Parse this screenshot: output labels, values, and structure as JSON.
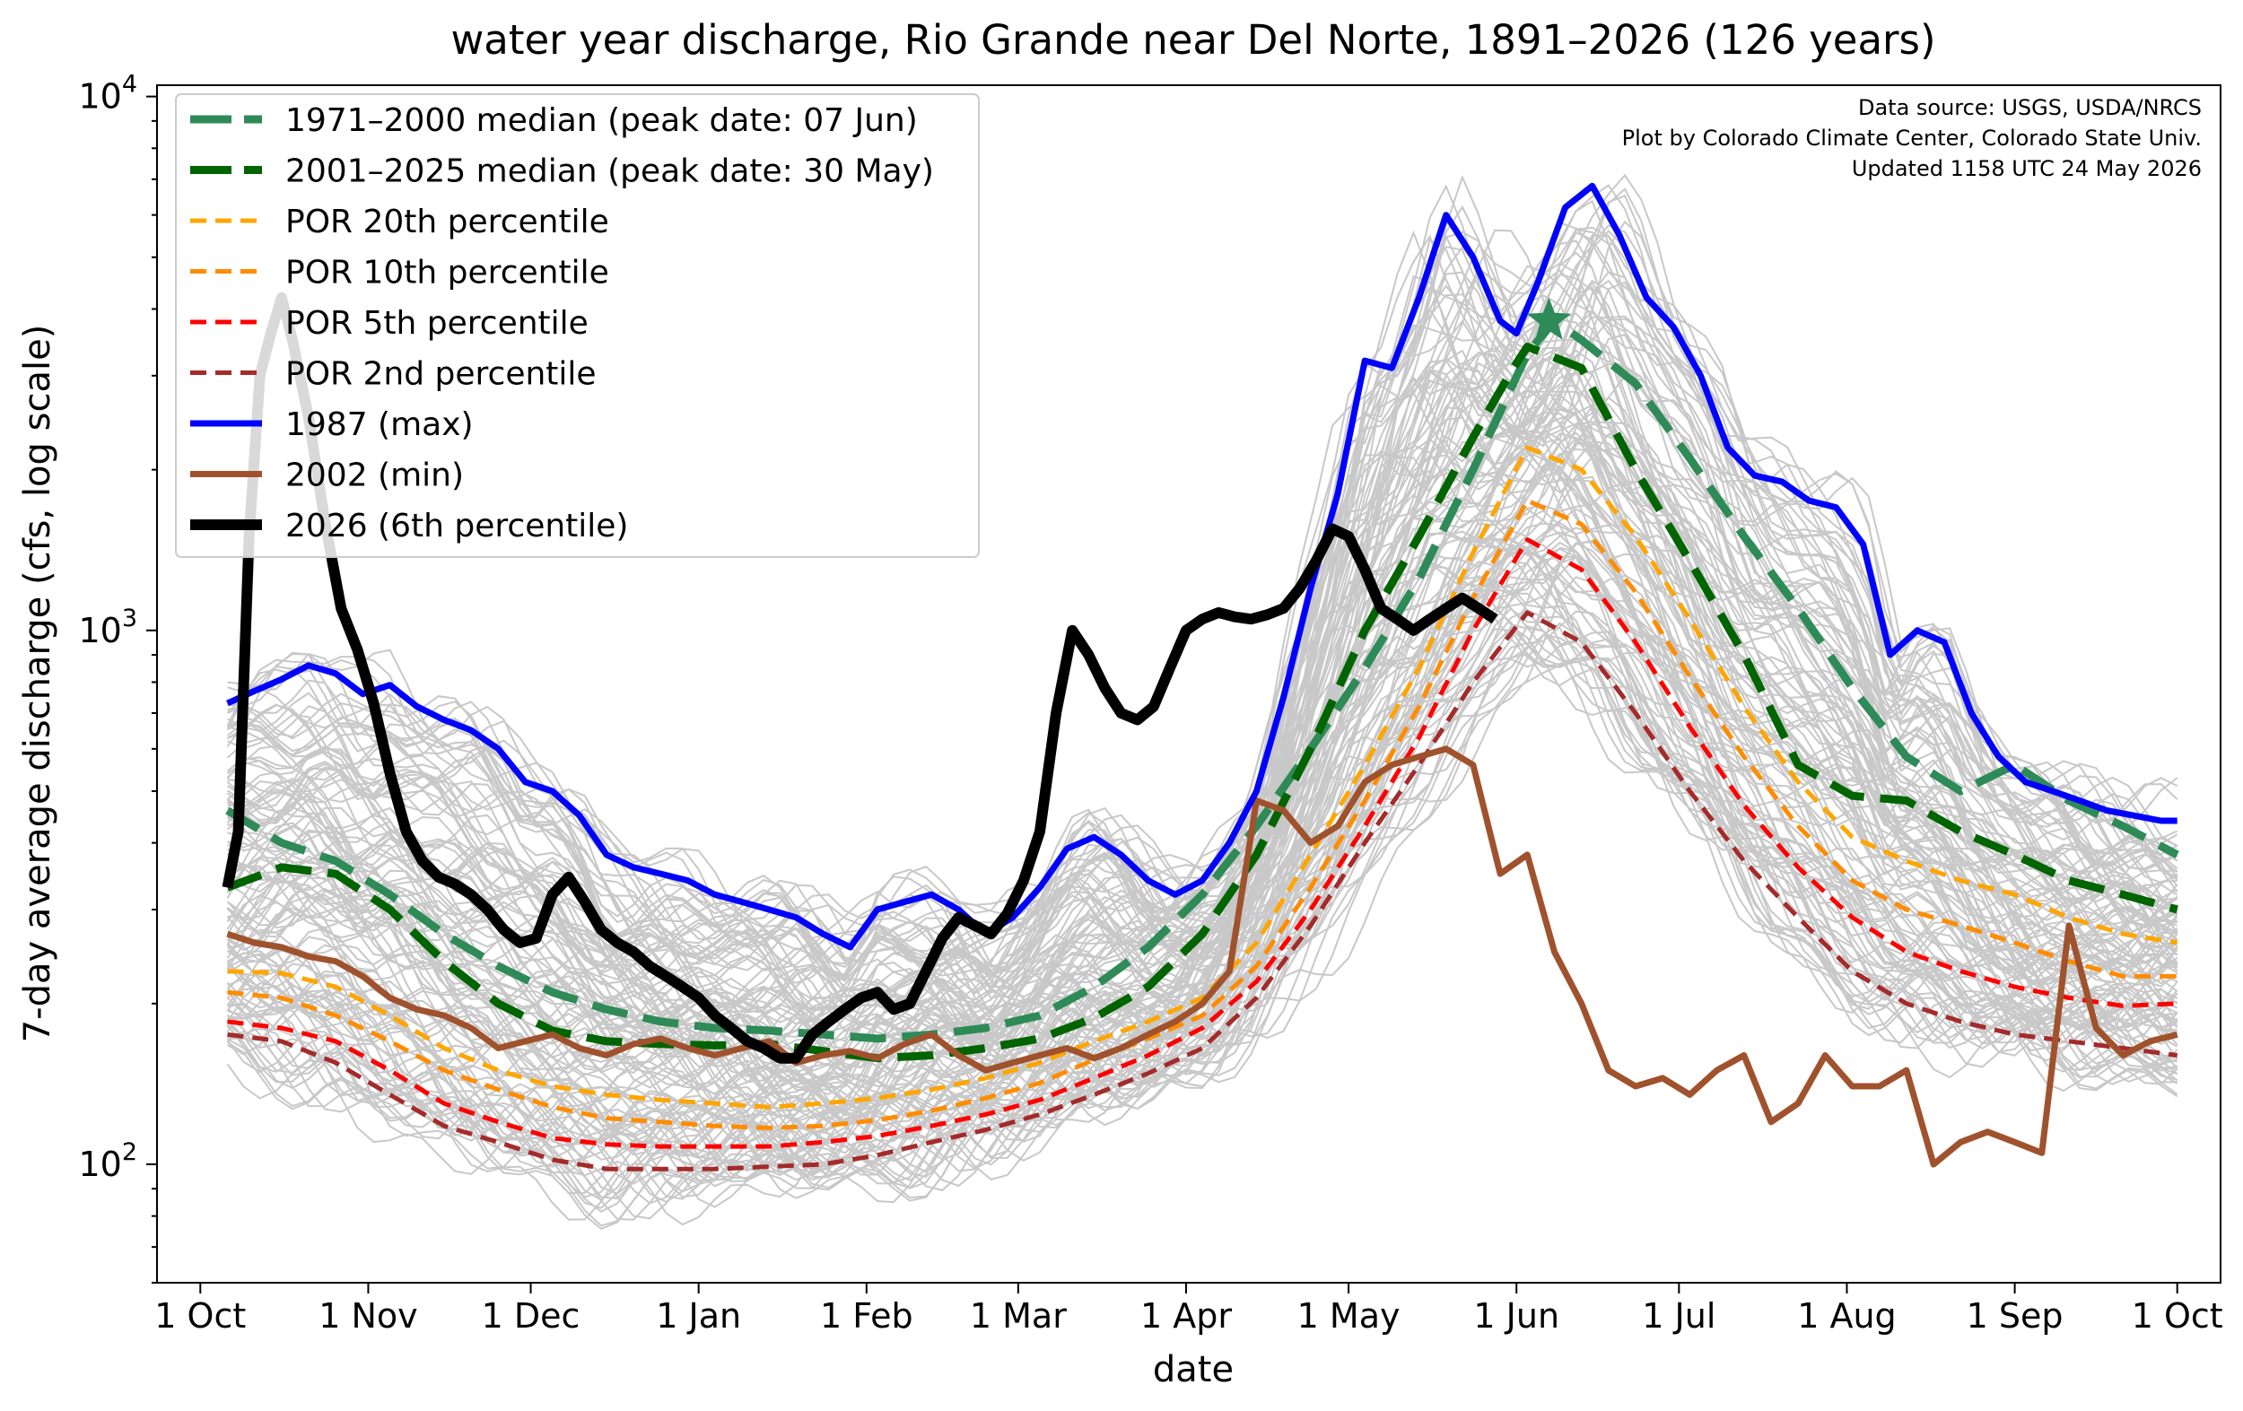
{
  "chart_data": {
    "type": "line",
    "title": "water year discharge, Rio Grande near Del Norte, 1891–2026 (126 years)",
    "xlabel": "date",
    "ylabel": "7-day average discharge (cfs, log scale)",
    "yscale": "log",
    "ylim": [
      60,
      10500
    ],
    "xlim": [
      -8,
      373
    ],
    "y_ticks": [
      {
        "value": 100,
        "base": "10",
        "exp": "2"
      },
      {
        "value": 1000,
        "base": "10",
        "exp": "3"
      },
      {
        "value": 10000,
        "base": "10",
        "exp": "4"
      }
    ],
    "x_ticks": [
      {
        "day": 0,
        "label": "1 Oct"
      },
      {
        "day": 31,
        "label": "1 Nov"
      },
      {
        "day": 61,
        "label": "1 Dec"
      },
      {
        "day": 92,
        "label": "1 Jan"
      },
      {
        "day": 123,
        "label": "1 Feb"
      },
      {
        "day": 151,
        "label": "1 Mar"
      },
      {
        "day": 182,
        "label": "1 Apr"
      },
      {
        "day": 212,
        "label": "1 May"
      },
      {
        "day": 243,
        "label": "1 Jun"
      },
      {
        "day": 273,
        "label": "1 Jul"
      },
      {
        "day": 304,
        "label": "1 Aug"
      },
      {
        "day": 335,
        "label": "1 Sep"
      },
      {
        "day": 365,
        "label": "1 Oct"
      }
    ],
    "annotation": [
      "Data source: USGS, USDA/NRCS",
      "Plot by Colorado Climate Center, Colorado State Univ.",
      "Updated 1158 UTC 24 May 2026"
    ],
    "legend_position": "upper-left",
    "grid": false,
    "background_years": {
      "color": "#c8c8c8",
      "count": 126,
      "note_values_are_approximate_envelope": true
    },
    "series": [
      {
        "name": "1971–2000 median (peak date: 07 Jun)",
        "color": "#2e8b57",
        "style": "dashed",
        "width": 9,
        "peak_marker": {
          "day": 249,
          "y": 3800
        },
        "x": [
          5,
          15,
          25,
          35,
          45,
          55,
          65,
          75,
          85,
          95,
          105,
          115,
          125,
          135,
          145,
          155,
          165,
          175,
          185,
          195,
          205,
          215,
          225,
          235,
          245,
          250,
          255,
          265,
          275,
          285,
          295,
          305,
          315,
          325,
          335,
          345,
          355,
          365
        ],
        "y": [
          460,
          400,
          370,
          320,
          270,
          235,
          210,
          195,
          185,
          180,
          178,
          175,
          172,
          175,
          180,
          190,
          215,
          255,
          320,
          430,
          600,
          850,
          1250,
          2000,
          3300,
          3800,
          3500,
          2900,
          2100,
          1500,
          1100,
          780,
          580,
          500,
          560,
          480,
          430,
          380
        ]
      },
      {
        "name": "2001–2025 median (peak date: 30 May)",
        "color": "#006400",
        "style": "dashed",
        "width": 9,
        "x": [
          5,
          15,
          25,
          35,
          45,
          55,
          65,
          75,
          85,
          95,
          105,
          115,
          125,
          135,
          145,
          155,
          165,
          175,
          185,
          195,
          205,
          215,
          225,
          235,
          242,
          245,
          255,
          265,
          275,
          285,
          295,
          305,
          315,
          325,
          335,
          345,
          355,
          365
        ],
        "y": [
          330,
          360,
          350,
          300,
          240,
          200,
          178,
          170,
          168,
          167,
          168,
          163,
          158,
          160,
          165,
          172,
          188,
          215,
          270,
          380,
          600,
          1000,
          1500,
          2300,
          3050,
          3400,
          3100,
          2000,
          1350,
          900,
          560,
          490,
          480,
          420,
          380,
          340,
          320,
          300
        ]
      },
      {
        "name": "POR 20th percentile",
        "color": "#ffa500",
        "style": "dashed",
        "width": 5,
        "x": [
          5,
          15,
          25,
          35,
          45,
          55,
          65,
          75,
          85,
          95,
          105,
          115,
          125,
          135,
          145,
          155,
          165,
          175,
          185,
          195,
          205,
          215,
          225,
          235,
          245,
          255,
          265,
          275,
          285,
          295,
          305,
          315,
          325,
          335,
          345,
          355,
          365
        ],
        "y": [
          230,
          228,
          215,
          190,
          165,
          150,
          140,
          135,
          132,
          130,
          128,
          130,
          133,
          138,
          145,
          155,
          170,
          185,
          205,
          260,
          380,
          560,
          850,
          1400,
          2200,
          2000,
          1500,
          1050,
          720,
          520,
          410,
          370,
          340,
          320,
          290,
          270,
          260
        ]
      },
      {
        "name": "POR 10th percentile",
        "color": "#ff8c00",
        "style": "dashed",
        "width": 5,
        "x": [
          5,
          15,
          25,
          35,
          45,
          55,
          65,
          75,
          85,
          95,
          105,
          115,
          125,
          135,
          145,
          155,
          165,
          175,
          185,
          195,
          205,
          215,
          225,
          235,
          245,
          255,
          265,
          275,
          285,
          295,
          305,
          315,
          325,
          335,
          345,
          355,
          365
        ],
        "y": [
          210,
          205,
          190,
          170,
          150,
          138,
          128,
          122,
          120,
          118,
          117,
          118,
          121,
          126,
          133,
          142,
          157,
          172,
          190,
          235,
          330,
          480,
          720,
          1150,
          1750,
          1580,
          1180,
          820,
          580,
          430,
          340,
          300,
          280,
          260,
          240,
          225,
          225
        ]
      },
      {
        "name": "POR 5th percentile",
        "color": "#ff0000",
        "style": "dashed",
        "width": 5,
        "x": [
          5,
          15,
          25,
          35,
          45,
          55,
          65,
          75,
          85,
          95,
          105,
          115,
          125,
          135,
          145,
          155,
          165,
          175,
          185,
          195,
          205,
          215,
          225,
          235,
          245,
          255,
          265,
          275,
          285,
          295,
          305,
          315,
          325,
          335,
          345,
          355,
          365
        ],
        "y": [
          185,
          180,
          170,
          150,
          130,
          120,
          112,
          109,
          108,
          108,
          108,
          110,
          113,
          118,
          124,
          132,
          145,
          160,
          180,
          220,
          300,
          430,
          630,
          1000,
          1480,
          1300,
          950,
          660,
          470,
          360,
          290,
          250,
          230,
          215,
          205,
          198,
          200
        ]
      },
      {
        "name": "POR 2nd percentile",
        "color": "#a52a2a",
        "style": "dashed",
        "width": 5,
        "x": [
          5,
          15,
          25,
          35,
          45,
          55,
          65,
          75,
          85,
          95,
          105,
          115,
          125,
          135,
          145,
          155,
          165,
          175,
          185,
          195,
          205,
          215,
          225,
          235,
          245,
          255,
          265,
          275,
          285,
          295,
          305,
          315,
          325,
          335,
          345,
          355,
          365
        ],
        "y": [
          175,
          170,
          155,
          135,
          118,
          110,
          102,
          98,
          98,
          98,
          99,
          100,
          104,
          110,
          116,
          124,
          135,
          148,
          165,
          205,
          280,
          400,
          560,
          800,
          1080,
          950,
          700,
          500,
          370,
          290,
          230,
          200,
          185,
          175,
          170,
          165,
          160
        ]
      },
      {
        "name": "1987 (max)",
        "color": "#0000ff",
        "style": "solid",
        "width": 7,
        "x": [
          5,
          10,
          15,
          20,
          25,
          30,
          35,
          40,
          45,
          50,
          55,
          60,
          65,
          70,
          75,
          80,
          85,
          90,
          95,
          100,
          105,
          110,
          115,
          120,
          125,
          130,
          135,
          140,
          145,
          150,
          155,
          160,
          165,
          170,
          175,
          180,
          185,
          190,
          195,
          200,
          205,
          210,
          215,
          220,
          225,
          230,
          235,
          240,
          243,
          247,
          252,
          257,
          262,
          267,
          272,
          277,
          282,
          287,
          292,
          297,
          302,
          307,
          312,
          317,
          322,
          327,
          332,
          337,
          342,
          347,
          352,
          357,
          362,
          365
        ],
        "y": [
          730,
          770,
          810,
          860,
          830,
          760,
          790,
          720,
          680,
          650,
          600,
          520,
          500,
          450,
          380,
          360,
          350,
          340,
          320,
          310,
          300,
          290,
          270,
          255,
          300,
          310,
          320,
          300,
          270,
          290,
          330,
          390,
          410,
          380,
          340,
          320,
          340,
          400,
          500,
          750,
          1200,
          1800,
          3200,
          3100,
          4200,
          6000,
          5000,
          3800,
          3600,
          4500,
          6200,
          6800,
          5500,
          4200,
          3700,
          3000,
          2200,
          1950,
          1900,
          1750,
          1700,
          1450,
          900,
          1000,
          950,
          700,
          580,
          520,
          500,
          480,
          460,
          450,
          440,
          440
        ]
      },
      {
        "name": "2002 (min)",
        "color": "#a0522d",
        "style": "solid",
        "width": 7,
        "x": [
          5,
          10,
          15,
          20,
          25,
          30,
          35,
          40,
          45,
          50,
          55,
          60,
          65,
          70,
          75,
          80,
          85,
          90,
          95,
          100,
          105,
          110,
          115,
          120,
          125,
          130,
          135,
          140,
          145,
          150,
          155,
          160,
          165,
          170,
          175,
          180,
          185,
          190,
          195,
          200,
          205,
          210,
          215,
          220,
          225,
          230,
          235,
          240,
          245,
          250,
          255,
          260,
          265,
          270,
          275,
          280,
          285,
          290,
          295,
          300,
          305,
          310,
          315,
          320,
          325,
          330,
          335,
          340,
          345,
          350,
          355,
          360,
          365
        ],
        "y": [
          270,
          260,
          255,
          245,
          240,
          225,
          205,
          195,
          190,
          180,
          165,
          170,
          175,
          165,
          160,
          168,
          172,
          165,
          160,
          165,
          170,
          155,
          160,
          163,
          158,
          168,
          175,
          160,
          150,
          155,
          160,
          165,
          158,
          165,
          175,
          185,
          200,
          230,
          480,
          460,
          400,
          430,
          520,
          560,
          580,
          600,
          560,
          350,
          380,
          250,
          200,
          150,
          140,
          145,
          135,
          150,
          160,
          120,
          130,
          160,
          140,
          140,
          150,
          100,
          110,
          115,
          110,
          105,
          280,
          180,
          160,
          170,
          175
        ]
      },
      {
        "name": "2026 (6th percentile)",
        "color": "#000000",
        "style": "solid",
        "width": 12,
        "x": [
          5,
          7,
          9,
          11,
          13,
          15,
          17,
          20,
          23,
          26,
          29,
          32,
          35,
          38,
          41,
          44,
          47,
          50,
          53,
          56,
          59,
          62,
          65,
          68,
          71,
          74,
          77,
          80,
          83,
          86,
          89,
          92,
          95,
          98,
          101,
          104,
          107,
          110,
          113,
          116,
          119,
          122,
          125,
          128,
          131,
          134,
          137,
          140,
          143,
          146,
          149,
          152,
          155,
          158,
          161,
          164,
          167,
          170,
          173,
          176,
          179,
          182,
          185,
          188,
          191,
          194,
          197,
          200,
          203,
          206,
          209,
          212,
          215,
          218,
          221,
          224,
          227,
          230,
          233,
          236,
          239
        ],
        "y": [
          330,
          420,
          1500,
          3000,
          3600,
          4200,
          3500,
          2500,
          1600,
          1100,
          920,
          730,
          540,
          420,
          370,
          345,
          335,
          320,
          300,
          275,
          260,
          265,
          320,
          345,
          310,
          275,
          260,
          250,
          235,
          225,
          215,
          205,
          190,
          180,
          170,
          165,
          158,
          158,
          175,
          185,
          195,
          205,
          210,
          195,
          200,
          230,
          265,
          290,
          280,
          270,
          295,
          340,
          420,
          700,
          1000,
          900,
          780,
          700,
          680,
          720,
          850,
          1000,
          1050,
          1080,
          1060,
          1050,
          1070,
          1100,
          1200,
          1350,
          1550,
          1500,
          1300,
          1100,
          1050,
          1000,
          1050,
          1100,
          1150,
          1100,
          1050
        ]
      }
    ]
  }
}
